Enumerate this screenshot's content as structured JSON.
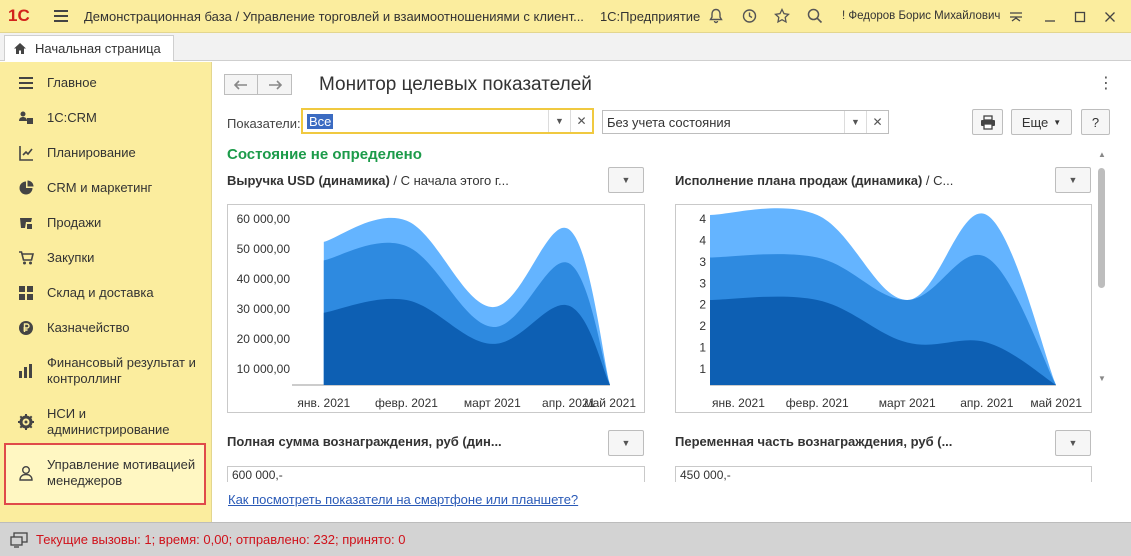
{
  "titlebar": {
    "logo": "1С",
    "title": "Демонстрационная база / Управление торговлей и взаимоотношениями с клиент...",
    "platform": "1С:Предприятие",
    "user": "! Федоров Борис Михайлович"
  },
  "tabs": [
    {
      "label": "Начальная страница"
    }
  ],
  "sidebar": {
    "items": [
      {
        "label": "Главное",
        "icon": "menu-icon"
      },
      {
        "label": "1С:CRM",
        "icon": "crm-icon"
      },
      {
        "label": "Планирование",
        "icon": "planning-icon"
      },
      {
        "label": "CRM и маркетинг",
        "icon": "pie-icon"
      },
      {
        "label": "Продажи",
        "icon": "sales-icon"
      },
      {
        "label": "Закупки",
        "icon": "cart-icon"
      },
      {
        "label": "Склад и доставка",
        "icon": "warehouse-icon"
      },
      {
        "label": "Казначейство",
        "icon": "treasury-icon"
      },
      {
        "label": "Финансовый результат и контроллинг",
        "icon": "bar-chart-icon"
      },
      {
        "label": "НСИ и администрирование",
        "icon": "gear-icon"
      },
      {
        "label": "Управление мотивацией менеджеров",
        "icon": "person-icon"
      }
    ]
  },
  "main": {
    "title": "Монитор целевых показателей",
    "filter_label": "Показатели:",
    "indicator_value": "Все",
    "state_value": "Без учета состояния",
    "more_label": "Еще",
    "help_label": "?",
    "state_title": "Состояние не определено",
    "link": "Как посмотреть показатели на смартфоне или планшете?"
  },
  "widgets": [
    {
      "title_bold": "Выручка USD (динамика)",
      "title_rest": " / С начала этого г..."
    },
    {
      "title_bold": "Исполнение плана продаж (динамика)",
      "title_rest": " / С..."
    },
    {
      "title_bold": "Полная сумма вознаграждения, руб (дин...",
      "title_rest": ""
    },
    {
      "title_bold": "Переменная часть вознаграждения, руб (...",
      "title_rest": ""
    }
  ],
  "partial_axis_labels": [
    "600 000,-",
    "450 000,-"
  ],
  "chart_data": [
    {
      "type": "area",
      "categories": [
        "янв. 2021",
        "февр. 2021",
        "март 2021",
        "апр. 2021",
        "май 2021"
      ],
      "y_tick_labels": [
        "60 000,00",
        "50 000,00",
        "40 000,00",
        "30 000,00",
        "20 000,00",
        "10 000,00"
      ],
      "ylim": [
        0,
        60000
      ],
      "series": [
        {
          "values": [
            25500,
            30000,
            14500,
            28000,
            0
          ],
          "color": "#0d5fb3"
        },
        {
          "values": [
            44000,
            49000,
            20500,
            43000,
            0
          ],
          "color": "#2e8ae0"
        },
        {
          "values": [
            50500,
            58000,
            27500,
            55000,
            0
          ],
          "color": "#64b4ff"
        }
      ]
    },
    {
      "type": "area",
      "categories": [
        "янв. 2021",
        "февр. 2021",
        "март 2021",
        "апр. 2021",
        "май 2021"
      ],
      "y_tick_labels": [
        "4",
        "4",
        "3",
        "3",
        "2",
        "2",
        "1",
        "1"
      ],
      "ylim": [
        0,
        8
      ],
      "series": [
        {
          "values": [
            4,
            4,
            2,
            2,
            0
          ],
          "color": "#0d5fb3"
        },
        {
          "values": [
            6,
            6,
            4,
            6,
            0
          ],
          "color": "#2e8ae0"
        },
        {
          "values": [
            8,
            8,
            4,
            8,
            0
          ],
          "color": "#64b4ff"
        }
      ]
    }
  ],
  "statusbar": {
    "text": "Текущие вызовы: 1; время: 0,00; отправлено: 232; принято: 0"
  }
}
